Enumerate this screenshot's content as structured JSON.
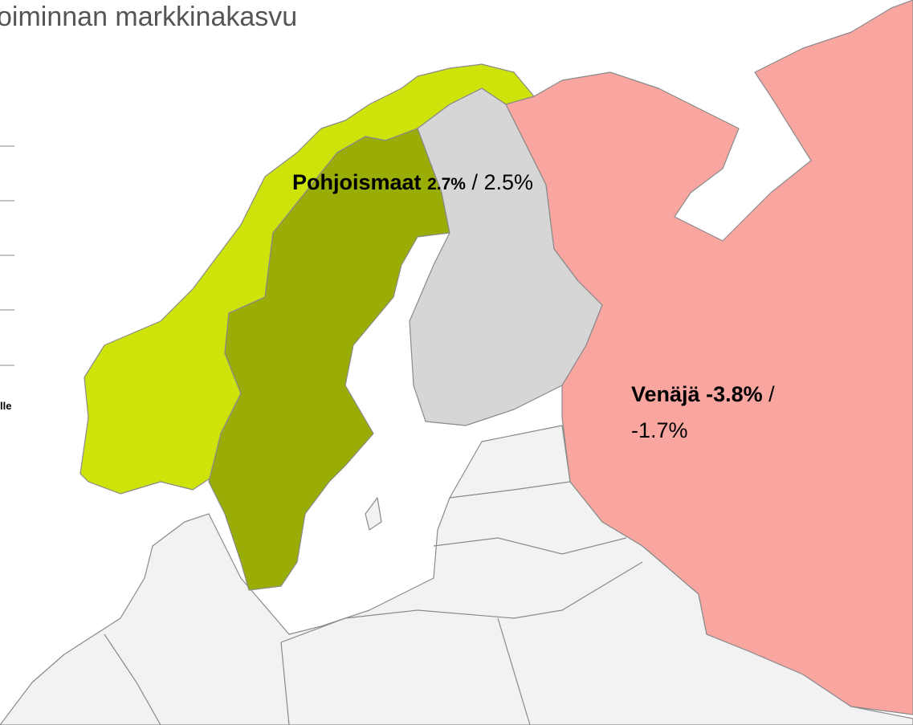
{
  "header": {
    "title": "oiminnan markkinakasvu"
  },
  "side": {
    "label": "lle"
  },
  "regions": [
    {
      "name": "Pohjoismaat",
      "primary": "2.7%",
      "secondary": "/ 2.5%"
    },
    {
      "name": "Venäjä",
      "primary": "-3.8%",
      "separator": "/",
      "secondary": "-1.7%"
    }
  ]
}
